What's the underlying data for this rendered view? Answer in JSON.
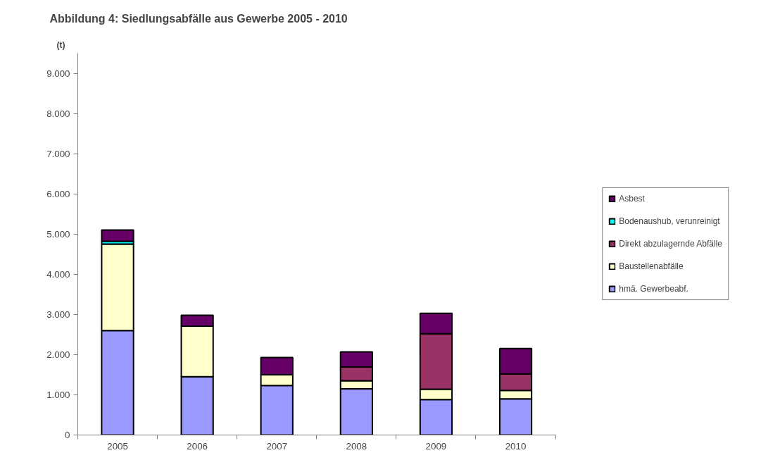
{
  "chart_data": {
    "type": "bar",
    "stacked": true,
    "title": "Abbildung 4: Siedlungsabfälle aus Gewerbe 2005 - 2010",
    "ylabel": "(t)",
    "categories": [
      "2005",
      "2006",
      "2007",
      "2008",
      "2009",
      "2010"
    ],
    "series": [
      {
        "name": "hmä. Gewerbeabf.",
        "color": "#9999ff",
        "values": [
          2600,
          1450,
          1230,
          1150,
          880,
          900
        ]
      },
      {
        "name": "Baustellenabfälle",
        "color": "#ffffcc",
        "values": [
          2150,
          1260,
          270,
          200,
          260,
          210
        ]
      },
      {
        "name": "Direkt abzulagernde Abfälle",
        "color": "#993366",
        "values": [
          null,
          null,
          null,
          340,
          1380,
          410
        ]
      },
      {
        "name": "Bodenaushub, verunreinigt",
        "color": "#00ffff",
        "values": [
          70,
          null,
          null,
          null,
          null,
          null
        ]
      },
      {
        "name": "Asbest",
        "color": "#660066",
        "values": [
          280,
          270,
          430,
          380,
          510,
          630
        ]
      }
    ],
    "ylim": [
      0,
      9500
    ],
    "yticks": [
      0,
      {
        "value": 1000,
        "label": "1.000"
      },
      {
        "value": 2000,
        "label": "2.000"
      },
      {
        "value": 3000,
        "label": "3.000"
      },
      {
        "value": 4000,
        "label": "4.000"
      },
      {
        "value": 5000,
        "label": "5.000"
      },
      {
        "value": 6000,
        "label": "6.000"
      },
      {
        "value": 7000,
        "label": "7.000"
      },
      {
        "value": 8000,
        "label": "8.000"
      },
      {
        "value": 9000,
        "label": "9.000"
      }
    ],
    "grid": false,
    "legend": "right"
  }
}
